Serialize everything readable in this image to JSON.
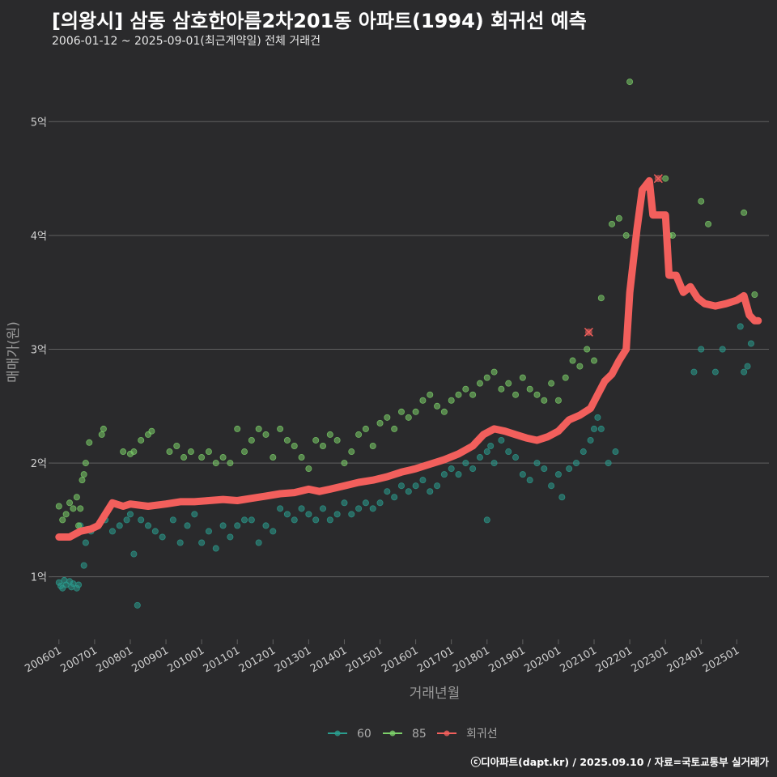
{
  "title": "[의왕시] 삼동 삼호한아름2차201동 아파트(1994) 회귀선 예측",
  "subtitle": "2006-01-12 ~ 2025-09-01(최근계약일) 전체 거래건",
  "credit": "ⓒ디아파트(dapt.kr) / 2025.09.10 / 자료=국토교통부 실거래가",
  "colors": {
    "s60": "#2a9d8f",
    "s85": "#7ccf6a",
    "reg": "#f25f5c",
    "grid": "#606060",
    "bg": "#2a2a2c"
  },
  "chart_data": {
    "type": "scatter",
    "xlabel": "거래년월",
    "ylabel": "매매가(원)",
    "xlim": [
      2005.8,
      2025.9
    ],
    "ylim": [
      0.45,
      5.5
    ],
    "x_ticks": [
      {
        "label": "200601",
        "v": 2006.0
      },
      {
        "label": "200701",
        "v": 2007.0
      },
      {
        "label": "200801",
        "v": 2008.0
      },
      {
        "label": "200901",
        "v": 2009.0
      },
      {
        "label": "201001",
        "v": 2010.0
      },
      {
        "label": "201101",
        "v": 2011.0
      },
      {
        "label": "201201",
        "v": 2012.0
      },
      {
        "label": "201301",
        "v": 2013.0
      },
      {
        "label": "201401",
        "v": 2014.0
      },
      {
        "label": "201501",
        "v": 2015.0
      },
      {
        "label": "201601",
        "v": 2016.0
      },
      {
        "label": "201701",
        "v": 2017.0
      },
      {
        "label": "201801",
        "v": 2018.0
      },
      {
        "label": "201901",
        "v": 2019.0
      },
      {
        "label": "202001",
        "v": 2020.0
      },
      {
        "label": "202101",
        "v": 2021.0
      },
      {
        "label": "202201",
        "v": 2022.0
      },
      {
        "label": "202301",
        "v": 2023.0
      },
      {
        "label": "202401",
        "v": 2024.0
      },
      {
        "label": "202501",
        "v": 2025.0
      }
    ],
    "y_ticks": [
      {
        "label": "1억",
        "v": 1
      },
      {
        "label": "2억",
        "v": 2
      },
      {
        "label": "3억",
        "v": 3
      },
      {
        "label": "4억",
        "v": 4
      },
      {
        "label": "5억",
        "v": 5
      }
    ],
    "legend": [
      {
        "name": "60",
        "key": "s60"
      },
      {
        "name": "85",
        "key": "s85"
      },
      {
        "name": "회귀선",
        "key": "reg"
      }
    ],
    "series": [
      {
        "name": "60",
        "key": "s60",
        "points": [
          [
            2006.0,
            0.95
          ],
          [
            2006.05,
            0.92
          ],
          [
            2006.1,
            0.9
          ],
          [
            2006.15,
            0.97
          ],
          [
            2006.2,
            0.93
          ],
          [
            2006.3,
            0.96
          ],
          [
            2006.35,
            0.91
          ],
          [
            2006.4,
            0.94
          ],
          [
            2006.5,
            0.9
          ],
          [
            2006.55,
            0.93
          ],
          [
            2006.6,
            1.45
          ],
          [
            2006.7,
            1.1
          ],
          [
            2006.75,
            1.3
          ],
          [
            2006.9,
            1.4
          ],
          [
            2007.1,
            1.45
          ],
          [
            2007.3,
            1.5
          ],
          [
            2007.5,
            1.4
          ],
          [
            2007.7,
            1.45
          ],
          [
            2007.9,
            1.5
          ],
          [
            2008.0,
            1.55
          ],
          [
            2008.1,
            1.2
          ],
          [
            2008.2,
            0.75
          ],
          [
            2008.3,
            1.5
          ],
          [
            2008.5,
            1.45
          ],
          [
            2008.7,
            1.4
          ],
          [
            2008.9,
            1.35
          ],
          [
            2009.2,
            1.5
          ],
          [
            2009.4,
            1.3
          ],
          [
            2009.6,
            1.45
          ],
          [
            2009.8,
            1.55
          ],
          [
            2010.0,
            1.3
          ],
          [
            2010.2,
            1.4
          ],
          [
            2010.4,
            1.25
          ],
          [
            2010.6,
            1.45
          ],
          [
            2010.8,
            1.35
          ],
          [
            2011.0,
            1.45
          ],
          [
            2011.2,
            1.5
          ],
          [
            2011.4,
            1.5
          ],
          [
            2011.6,
            1.3
          ],
          [
            2011.8,
            1.45
          ],
          [
            2012.0,
            1.4
          ],
          [
            2012.2,
            1.6
          ],
          [
            2012.4,
            1.55
          ],
          [
            2012.6,
            1.5
          ],
          [
            2012.8,
            1.6
          ],
          [
            2013.0,
            1.55
          ],
          [
            2013.2,
            1.5
          ],
          [
            2013.4,
            1.6
          ],
          [
            2013.6,
            1.5
          ],
          [
            2013.8,
            1.55
          ],
          [
            2014.0,
            1.65
          ],
          [
            2014.2,
            1.55
          ],
          [
            2014.4,
            1.6
          ],
          [
            2014.6,
            1.65
          ],
          [
            2014.8,
            1.6
          ],
          [
            2015.0,
            1.65
          ],
          [
            2015.2,
            1.75
          ],
          [
            2015.4,
            1.7
          ],
          [
            2015.6,
            1.8
          ],
          [
            2015.8,
            1.75
          ],
          [
            2016.0,
            1.8
          ],
          [
            2016.2,
            1.85
          ],
          [
            2016.4,
            1.75
          ],
          [
            2016.6,
            1.8
          ],
          [
            2016.8,
            1.9
          ],
          [
            2017.0,
            1.95
          ],
          [
            2017.2,
            1.9
          ],
          [
            2017.4,
            2.0
          ],
          [
            2017.6,
            1.95
          ],
          [
            2017.8,
            2.05
          ],
          [
            2018.0,
            2.1
          ],
          [
            2018.1,
            2.15
          ],
          [
            2018.2,
            2.0
          ],
          [
            2018.4,
            2.2
          ],
          [
            2018.0,
            1.5
          ],
          [
            2018.6,
            2.1
          ],
          [
            2018.8,
            2.05
          ],
          [
            2019.0,
            1.9
          ],
          [
            2019.2,
            1.85
          ],
          [
            2019.4,
            2.0
          ],
          [
            2019.6,
            1.95
          ],
          [
            2019.8,
            1.8
          ],
          [
            2020.0,
            1.9
          ],
          [
            2020.1,
            1.7
          ],
          [
            2020.3,
            1.95
          ],
          [
            2020.5,
            2.0
          ],
          [
            2020.7,
            2.1
          ],
          [
            2020.9,
            2.2
          ],
          [
            2021.0,
            2.3
          ],
          [
            2021.1,
            2.4
          ],
          [
            2021.2,
            2.3
          ],
          [
            2021.4,
            2.0
          ],
          [
            2021.6,
            2.1
          ],
          [
            2023.8,
            2.8
          ],
          [
            2024.0,
            3.0
          ],
          [
            2024.4,
            2.8
          ],
          [
            2024.6,
            3.0
          ],
          [
            2025.2,
            2.8
          ],
          [
            2025.3,
            2.85
          ],
          [
            2025.4,
            3.05
          ],
          [
            2025.1,
            3.2
          ]
        ]
      },
      {
        "name": "85",
        "key": "s85"
      },
      {
        "name": "85",
        "key": "s85",
        "points": [
          [
            2006.0,
            1.62
          ],
          [
            2006.1,
            1.5
          ],
          [
            2006.2,
            1.55
          ],
          [
            2006.3,
            1.65
          ],
          [
            2006.4,
            1.6
          ],
          [
            2006.5,
            1.7
          ],
          [
            2006.55,
            1.45
          ],
          [
            2006.65,
            1.85
          ],
          [
            2006.75,
            2.0
          ],
          [
            2006.85,
            2.18
          ],
          [
            2006.6,
            1.6
          ],
          [
            2006.7,
            1.9
          ],
          [
            2007.2,
            2.25
          ],
          [
            2007.25,
            2.3
          ],
          [
            2007.8,
            2.1
          ],
          [
            2008.0,
            2.08
          ],
          [
            2008.1,
            2.1
          ],
          [
            2008.3,
            2.2
          ],
          [
            2008.5,
            2.25
          ],
          [
            2008.6,
            2.28
          ],
          [
            2009.1,
            2.1
          ],
          [
            2009.3,
            2.15
          ],
          [
            2009.5,
            2.05
          ],
          [
            2009.7,
            2.1
          ],
          [
            2010.0,
            2.05
          ],
          [
            2010.2,
            2.1
          ],
          [
            2010.4,
            2.0
          ],
          [
            2010.6,
            2.05
          ],
          [
            2010.8,
            2.0
          ],
          [
            2011.0,
            2.3
          ],
          [
            2011.2,
            2.1
          ],
          [
            2011.4,
            2.2
          ],
          [
            2011.6,
            2.3
          ],
          [
            2011.8,
            2.25
          ],
          [
            2012.0,
            2.05
          ],
          [
            2012.2,
            2.3
          ],
          [
            2012.4,
            2.2
          ],
          [
            2012.6,
            2.15
          ],
          [
            2012.8,
            2.05
          ],
          [
            2013.0,
            1.95
          ],
          [
            2013.2,
            2.2
          ],
          [
            2013.4,
            2.15
          ],
          [
            2013.6,
            2.25
          ],
          [
            2013.8,
            2.2
          ],
          [
            2014.0,
            2.0
          ],
          [
            2014.2,
            2.1
          ],
          [
            2014.4,
            2.25
          ],
          [
            2014.6,
            2.3
          ],
          [
            2014.8,
            2.15
          ],
          [
            2015.0,
            2.35
          ],
          [
            2015.2,
            2.4
          ],
          [
            2015.4,
            2.3
          ],
          [
            2015.6,
            2.45
          ],
          [
            2015.8,
            2.4
          ],
          [
            2016.0,
            2.45
          ],
          [
            2016.2,
            2.55
          ],
          [
            2016.4,
            2.6
          ],
          [
            2016.6,
            2.5
          ],
          [
            2016.8,
            2.45
          ],
          [
            2017.0,
            2.55
          ],
          [
            2017.2,
            2.6
          ],
          [
            2017.4,
            2.65
          ],
          [
            2017.6,
            2.6
          ],
          [
            2017.8,
            2.7
          ],
          [
            2018.0,
            2.75
          ],
          [
            2018.2,
            2.8
          ],
          [
            2018.4,
            2.65
          ],
          [
            2018.6,
            2.7
          ],
          [
            2018.8,
            2.6
          ],
          [
            2019.0,
            2.75
          ],
          [
            2019.2,
            2.65
          ],
          [
            2019.4,
            2.6
          ],
          [
            2019.6,
            2.55
          ],
          [
            2019.8,
            2.7
          ],
          [
            2020.0,
            2.55
          ],
          [
            2020.2,
            2.75
          ],
          [
            2020.4,
            2.9
          ],
          [
            2020.6,
            2.85
          ],
          [
            2020.8,
            3.0
          ],
          [
            2021.0,
            2.9
          ],
          [
            2021.2,
            3.45
          ],
          [
            2021.5,
            4.1
          ],
          [
            2021.7,
            4.15
          ],
          [
            2021.9,
            4.0
          ],
          [
            2022.0,
            5.35
          ],
          [
            2022.3,
            4.3
          ],
          [
            2023.0,
            4.5
          ],
          [
            2023.1,
            4.0
          ],
          [
            2023.2,
            4.0
          ],
          [
            2024.0,
            4.3
          ],
          [
            2024.2,
            4.1
          ],
          [
            2025.2,
            4.2
          ],
          [
            2025.5,
            3.48
          ]
        ]
      }
    ],
    "regression": [
      [
        2006.0,
        1.35
      ],
      [
        2006.3,
        1.35
      ],
      [
        2006.6,
        1.4
      ],
      [
        2006.9,
        1.42
      ],
      [
        2007.1,
        1.45
      ],
      [
        2007.3,
        1.55
      ],
      [
        2007.5,
        1.65
      ],
      [
        2007.8,
        1.62
      ],
      [
        2008.0,
        1.64
      ],
      [
        2008.5,
        1.62
      ],
      [
        2009.0,
        1.64
      ],
      [
        2009.4,
        1.66
      ],
      [
        2009.8,
        1.66
      ],
      [
        2010.2,
        1.67
      ],
      [
        2010.6,
        1.68
      ],
      [
        2011.0,
        1.67
      ],
      [
        2011.4,
        1.69
      ],
      [
        2011.8,
        1.71
      ],
      [
        2012.2,
        1.73
      ],
      [
        2012.6,
        1.74
      ],
      [
        2013.0,
        1.77
      ],
      [
        2013.3,
        1.75
      ],
      [
        2013.6,
        1.77
      ],
      [
        2014.0,
        1.8
      ],
      [
        2014.4,
        1.83
      ],
      [
        2014.8,
        1.85
      ],
      [
        2015.2,
        1.88
      ],
      [
        2015.6,
        1.92
      ],
      [
        2016.0,
        1.95
      ],
      [
        2016.4,
        1.99
      ],
      [
        2016.8,
        2.03
      ],
      [
        2017.2,
        2.08
      ],
      [
        2017.6,
        2.15
      ],
      [
        2017.9,
        2.25
      ],
      [
        2018.2,
        2.3
      ],
      [
        2018.5,
        2.28
      ],
      [
        2018.8,
        2.25
      ],
      [
        2019.1,
        2.22
      ],
      [
        2019.4,
        2.2
      ],
      [
        2019.7,
        2.23
      ],
      [
        2020.0,
        2.28
      ],
      [
        2020.3,
        2.38
      ],
      [
        2020.6,
        2.42
      ],
      [
        2020.9,
        2.48
      ],
      [
        2021.1,
        2.6
      ],
      [
        2021.3,
        2.72
      ],
      [
        2021.5,
        2.78
      ],
      [
        2021.7,
        2.9
      ],
      [
        2021.9,
        3.0
      ],
      [
        2022.0,
        3.5
      ],
      [
        2022.2,
        4.05
      ],
      [
        2022.35,
        4.4
      ],
      [
        2022.55,
        4.48
      ],
      [
        2022.65,
        4.18
      ],
      [
        2022.85,
        4.18
      ],
      [
        2023.0,
        4.18
      ],
      [
        2023.1,
        3.65
      ],
      [
        2023.3,
        3.65
      ],
      [
        2023.5,
        3.5
      ],
      [
        2023.7,
        3.55
      ],
      [
        2023.9,
        3.45
      ],
      [
        2024.1,
        3.4
      ],
      [
        2024.4,
        3.38
      ],
      [
        2024.7,
        3.4
      ],
      [
        2025.0,
        3.43
      ],
      [
        2025.2,
        3.47
      ],
      [
        2025.35,
        3.3
      ],
      [
        2025.5,
        3.25
      ],
      [
        2025.6,
        3.25
      ]
    ],
    "highlights": [
      [
        2020.85,
        3.15
      ],
      [
        2022.8,
        4.5
      ]
    ]
  }
}
